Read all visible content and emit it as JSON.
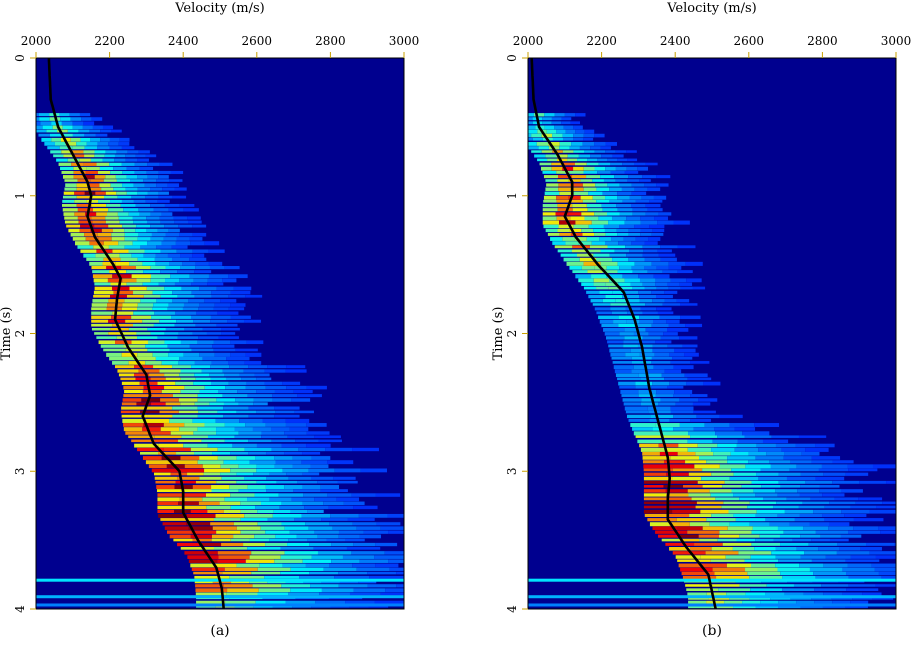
{
  "chart_data": [
    {
      "type": "heatmap",
      "panel_label": "(a)",
      "title": "",
      "xlabel": "Velocity (m/s)",
      "ylabel": "Time (s)",
      "xlim": [
        2000,
        3000
      ],
      "ylim": [
        0,
        4
      ],
      "x_axis_position": "top",
      "y_axis_inverted": true,
      "xticks": [
        2000,
        2200,
        2400,
        2600,
        2800,
        3000
      ],
      "yticks": [
        0,
        1,
        2,
        3,
        4
      ],
      "colormap": "jet",
      "background_color": "#00008f",
      "grid": false,
      "legend": "none",
      "picked_velocity_curve": {
        "time": [
          0,
          0.3,
          0.5,
          0.7,
          0.9,
          1.0,
          1.15,
          1.3,
          1.5,
          1.6,
          1.75,
          1.9,
          2.1,
          2.3,
          2.45,
          2.6,
          2.8,
          3.0,
          3.15,
          3.3,
          3.5,
          3.7,
          3.85,
          4.0
        ],
        "velocity": [
          2035,
          2040,
          2060,
          2100,
          2140,
          2150,
          2140,
          2160,
          2210,
          2230,
          2220,
          2215,
          2250,
          2300,
          2310,
          2290,
          2320,
          2390,
          2400,
          2400,
          2440,
          2490,
          2505,
          2510
        ]
      },
      "semblance_energy": {
        "time": [
          0.45,
          0.6,
          0.75,
          0.9,
          1.05,
          1.2,
          1.35,
          1.5,
          1.65,
          1.8,
          1.95,
          2.1,
          2.25,
          2.4,
          2.55,
          2.7,
          2.85,
          3.0,
          3.15,
          3.3,
          3.45,
          3.6,
          3.75,
          3.9
        ],
        "peak_velocity": [
          2050,
          2090,
          2130,
          2150,
          2140,
          2150,
          2180,
          2220,
          2230,
          2220,
          2220,
          2250,
          2290,
          2310,
          2300,
          2310,
          2350,
          2390,
          2400,
          2400,
          2430,
          2480,
          2500,
          2505
        ],
        "strength": [
          0.35,
          0.55,
          0.7,
          0.9,
          0.9,
          0.85,
          0.7,
          0.85,
          0.85,
          0.85,
          0.75,
          0.7,
          0.75,
          0.9,
          0.85,
          0.8,
          0.85,
          0.95,
          1.0,
          0.95,
          0.9,
          0.9,
          0.85,
          0.6
        ]
      }
    },
    {
      "type": "heatmap",
      "panel_label": "(b)",
      "title": "",
      "xlabel": "Velocity (m/s)",
      "ylabel": "Time (s)",
      "xlim": [
        2000,
        3000
      ],
      "ylim": [
        0,
        4
      ],
      "x_axis_position": "top",
      "y_axis_inverted": true,
      "xticks": [
        2000,
        2200,
        2400,
        2600,
        2800,
        3000
      ],
      "yticks": [
        0,
        1,
        2,
        3,
        4
      ],
      "colormap": "jet",
      "background_color": "#00008f",
      "grid": false,
      "legend": "none",
      "picked_velocity_curve": {
        "time": [
          0,
          0.3,
          0.5,
          0.7,
          0.9,
          1.0,
          1.15,
          1.3,
          1.5,
          1.7,
          1.9,
          2.1,
          2.4,
          2.7,
          2.9,
          3.05,
          3.2,
          3.35,
          3.55,
          3.75,
          4.0
        ],
        "velocity": [
          2010,
          2015,
          2030,
          2080,
          2120,
          2120,
          2100,
          2130,
          2190,
          2260,
          2290,
          2310,
          2330,
          2360,
          2380,
          2385,
          2380,
          2380,
          2430,
          2490,
          2510
        ]
      },
      "semblance_energy": {
        "time": [
          0.45,
          0.6,
          0.75,
          0.9,
          1.05,
          1.2,
          1.35,
          1.5,
          1.65,
          1.8,
          2.0,
          2.2,
          2.4,
          2.6,
          2.85,
          3.0,
          3.15,
          3.3,
          3.45,
          3.6,
          3.75,
          3.9
        ],
        "peak_velocity": [
          2030,
          2060,
          2100,
          2120,
          2110,
          2110,
          2140,
          2180,
          2220,
          2250,
          2280,
          2300,
          2320,
          2340,
          2380,
          2385,
          2385,
          2385,
          2420,
          2470,
          2490,
          2505
        ],
        "strength": [
          0.4,
          0.55,
          0.7,
          0.85,
          0.85,
          0.8,
          0.65,
          0.6,
          0.4,
          0.3,
          0.25,
          0.22,
          0.22,
          0.25,
          0.8,
          0.95,
          1.0,
          0.95,
          0.9,
          0.85,
          0.8,
          0.6
        ]
      }
    }
  ]
}
